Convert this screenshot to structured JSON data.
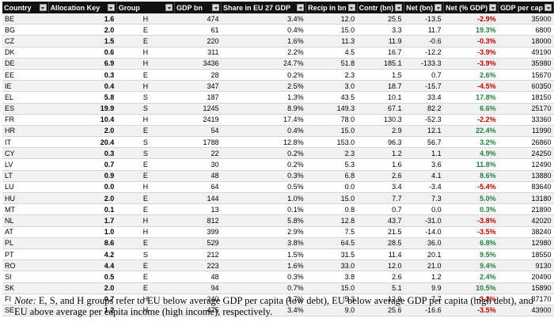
{
  "table": {
    "headers": [
      "Country",
      "Allocation Key",
      "Group",
      "GDP bn",
      "Share in EU 27 GDP",
      "Recip in bn",
      "Contr (bn)",
      "Net (bn)",
      "Net (% GDP)",
      "GDP per cap"
    ],
    "rows": [
      [
        "BE",
        "1.6",
        "H",
        "474",
        "3.4%",
        "12.0",
        "25.5",
        "-13.5",
        "-2.9%",
        "35900"
      ],
      [
        "BG",
        "2.0",
        "E",
        "61",
        "0.4%",
        "15.0",
        "3.3",
        "11.7",
        "19.3%",
        "6800"
      ],
      [
        "CZ",
        "1.5",
        "E",
        "220",
        "1.6%",
        "11.3",
        "11.9",
        "-0.6",
        "-0.3%",
        "18000"
      ],
      [
        "DK",
        "0.6",
        "H",
        "311",
        "2.2%",
        "4.5",
        "16.7",
        "-12.2",
        "-3.9%",
        "49190"
      ],
      [
        "DE",
        "6.9",
        "H",
        "3436",
        "24.7%",
        "51.8",
        "185.1",
        "-133.3",
        "-3.9%",
        "35980"
      ],
      [
        "EE",
        "0.3",
        "E",
        "28",
        "0.2%",
        "2.3",
        "1.5",
        "0.7",
        "2.6%",
        "15670"
      ],
      [
        "IE",
        "0.4",
        "H",
        "347",
        "2.5%",
        "3.0",
        "18.7",
        "-15.7",
        "-4.5%",
        "60350"
      ],
      [
        "EL",
        "5.8",
        "S",
        "187",
        "1.3%",
        "43.5",
        "10.1",
        "33.4",
        "17.8%",
        "18150"
      ],
      [
        "ES",
        "19.9",
        "S",
        "1245",
        "8.9%",
        "149.3",
        "67.1",
        "82.2",
        "6.6%",
        "25170"
      ],
      [
        "FR",
        "10.4",
        "H",
        "2419",
        "17.4%",
        "78.0",
        "130.3",
        "-52.3",
        "-2.2%",
        "33360"
      ],
      [
        "HR",
        "2.0",
        "E",
        "54",
        "0.4%",
        "15.0",
        "2.9",
        "12.1",
        "22.4%",
        "11990"
      ],
      [
        "IT",
        "20.4",
        "S",
        "1788",
        "12.8%",
        "153.0",
        "96.3",
        "56.7",
        "3.2%",
        "26860"
      ],
      [
        "CY",
        "0.3",
        "S",
        "22",
        "0.2%",
        "2.3",
        "1.2",
        "1.1",
        "4.9%",
        "24250"
      ],
      [
        "LV",
        "0.7",
        "E",
        "30",
        "0.2%",
        "5.3",
        "1.6",
        "3.6",
        "11.8%",
        "12490"
      ],
      [
        "LT",
        "0.9",
        "E",
        "48",
        "0.3%",
        "6.8",
        "2.6",
        "4.1",
        "8.6%",
        "13880"
      ],
      [
        "LU",
        "0.0",
        "H",
        "64",
        "0.5%",
        "0.0",
        "3.4",
        "-3.4",
        "-5.4%",
        "83640"
      ],
      [
        "HU",
        "2.0",
        "E",
        "144",
        "1.0%",
        "15.0",
        "7.7",
        "7.3",
        "5.0%",
        "13180"
      ],
      [
        "MT",
        "0.1",
        "E",
        "13",
        "0.1%",
        "0.8",
        "0.7",
        "0.0",
        "0.3%",
        "21890"
      ],
      [
        "NL",
        "1.7",
        "H",
        "812",
        "5.8%",
        "12.8",
        "43.7",
        "-31.0",
        "-3.8%",
        "42020"
      ],
      [
        "AT",
        "1.0",
        "H",
        "399",
        "2.9%",
        "7.5",
        "21.5",
        "-14.0",
        "-3.5%",
        "38240"
      ],
      [
        "PL",
        "8.6",
        "E",
        "529",
        "3.8%",
        "64.5",
        "28.5",
        "36.0",
        "6.8%",
        "12980"
      ],
      [
        "PT",
        "4.2",
        "S",
        "212",
        "1.5%",
        "31.5",
        "11.4",
        "20.1",
        "9.5%",
        "18550"
      ],
      [
        "RO",
        "4.4",
        "E",
        "223",
        "1.6%",
        "33.0",
        "12.0",
        "21.0",
        "9.4%",
        "9130"
      ],
      [
        "SI",
        "0.5",
        "E",
        "48",
        "0.3%",
        "3.8",
        "2.6",
        "1.2",
        "2.4%",
        "20490"
      ],
      [
        "SK",
        "2.0",
        "E",
        "94",
        "0.7%",
        "15.0",
        "5.1",
        "9.9",
        "10.5%",
        "15890"
      ],
      [
        "FI",
        "0.7",
        "H",
        "240",
        "1.7%",
        "5.3",
        "12.9",
        "-7.7",
        "-3.2%",
        "37170"
      ],
      [
        "SE",
        "1.2",
        "H",
        "475",
        "3.4%",
        "9.0",
        "25.6",
        "-16.6",
        "-3.5%",
        "43900"
      ]
    ]
  },
  "note": {
    "label": "Note:",
    "text": " E, S, and H groups refer to EU below average GDP per capita (low debt), EU below average GDP per capita (high debt), and EU above average per capita income (high income), respectively."
  },
  "colors": {
    "header_bg": "#111111",
    "negative": "#c00000",
    "positive": "#208040"
  }
}
